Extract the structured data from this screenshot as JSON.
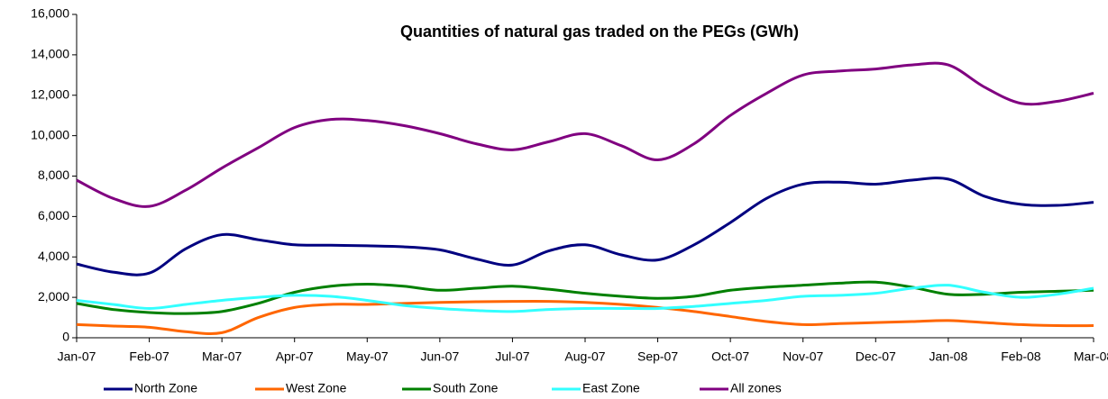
{
  "chart_data": {
    "type": "line",
    "title": "Quantities of natural gas traded on the PEGs (GWh)",
    "categories": [
      "Jan-07",
      null,
      "Feb-07",
      null,
      "Mar-07",
      null,
      "Apr-07",
      null,
      "May-07",
      null,
      "Jun-07",
      null,
      "Jul-07",
      null,
      "Aug-07",
      null,
      "Sep-07",
      null,
      "Oct-07",
      null,
      "Nov-07",
      null,
      "Dec-07",
      null,
      "Jan-08",
      null,
      "Feb-08",
      null,
      "Mar-08"
    ],
    "series": [
      {
        "name": "North Zone",
        "color": "#000080",
        "values": [
          3650,
          3250,
          3200,
          4400,
          5100,
          4850,
          4600,
          4580,
          4550,
          4500,
          4350,
          3900,
          3600,
          4300,
          4600,
          4100,
          3850,
          4600,
          5700,
          6900,
          7600,
          7700,
          7600,
          7800,
          7850,
          7000,
          6600,
          6550,
          6700
        ]
      },
      {
        "name": "West Zone",
        "color": "#ff6600",
        "values": [
          650,
          580,
          520,
          300,
          250,
          1000,
          1500,
          1650,
          1650,
          1700,
          1750,
          1780,
          1800,
          1800,
          1750,
          1650,
          1500,
          1300,
          1050,
          800,
          650,
          700,
          750,
          800,
          850,
          750,
          650,
          600,
          600
        ]
      },
      {
        "name": "South Zone",
        "color": "#008000",
        "values": [
          1700,
          1400,
          1250,
          1200,
          1300,
          1700,
          2250,
          2550,
          2650,
          2550,
          2350,
          2450,
          2550,
          2400,
          2200,
          2050,
          1950,
          2050,
          2350,
          2500,
          2600,
          2700,
          2750,
          2500,
          2150,
          2150,
          2250,
          2300,
          2350
        ]
      },
      {
        "name": "East Zone",
        "color": "#33ffff",
        "values": [
          1850,
          1650,
          1450,
          1650,
          1850,
          2000,
          2100,
          2050,
          1850,
          1600,
          1450,
          1350,
          1300,
          1400,
          1450,
          1450,
          1450,
          1550,
          1700,
          1850,
          2050,
          2100,
          2200,
          2450,
          2600,
          2250,
          2000,
          2150,
          2450
        ]
      },
      {
        "name": "All zones",
        "color": "#800080",
        "values": [
          7800,
          6900,
          6500,
          7300,
          8400,
          9400,
          10400,
          10800,
          10750,
          10500,
          10100,
          9600,
          9300,
          9700,
          10100,
          9500,
          8800,
          9600,
          11000,
          12100,
          13000,
          13200,
          13300,
          13500,
          13500,
          12400,
          11600,
          11700,
          12100
        ]
      }
    ],
    "ylim": [
      0,
      16000
    ],
    "yticks": [
      0,
      {
        "value": 2000,
        "label": "2,000"
      },
      {
        "value": 4000,
        "label": "4,000"
      },
      {
        "value": 6000,
        "label": "6,000"
      },
      {
        "value": 8000,
        "label": "8,000"
      },
      {
        "value": 10000,
        "label": "10,000"
      },
      {
        "value": 12000,
        "label": "12,000"
      },
      {
        "value": 14000,
        "label": "14,000"
      },
      {
        "value": 16000,
        "label": "16,000"
      }
    ],
    "grid": false,
    "legend": "bottom"
  }
}
